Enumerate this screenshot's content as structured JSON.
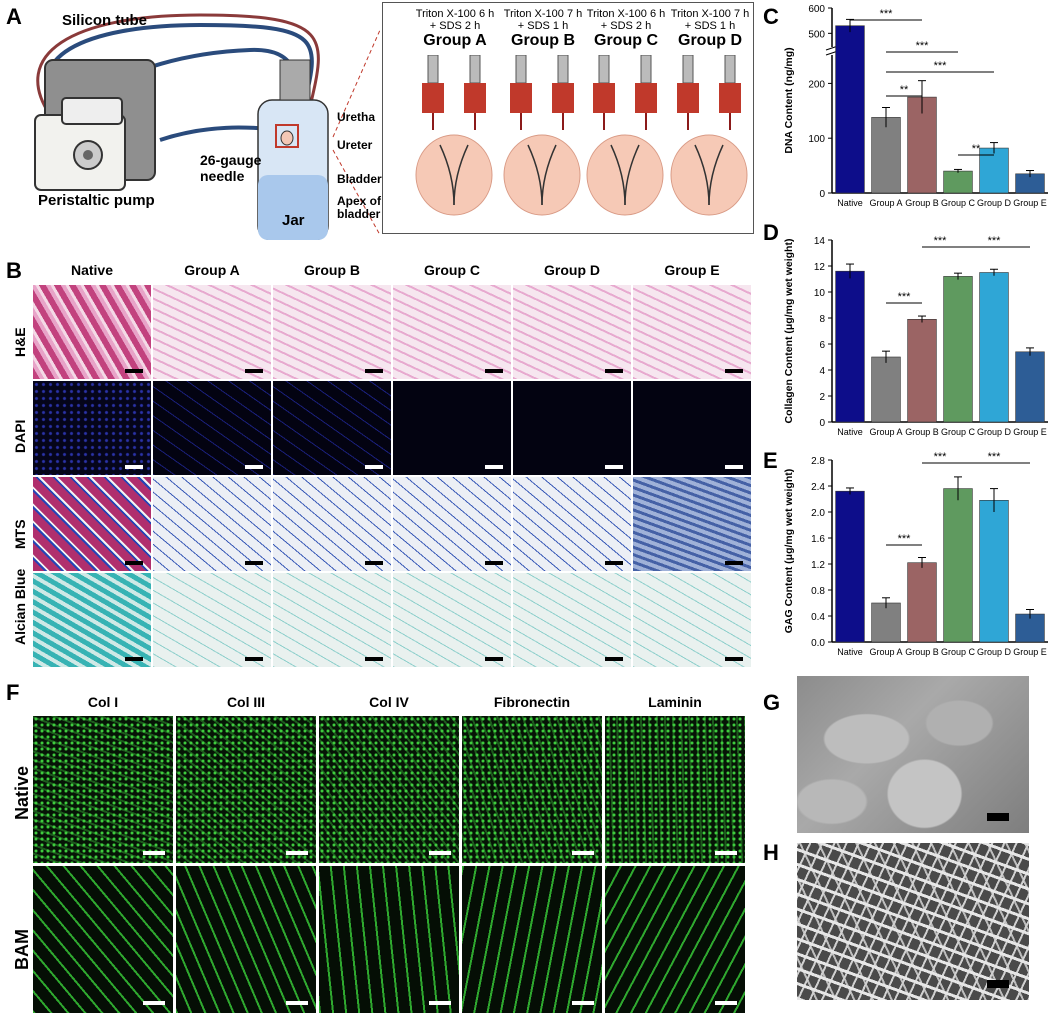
{
  "panels": {
    "A": {
      "letter": "A",
      "silicon_tube": "Silicon tube",
      "peristaltic_pump": "Peristaltic pump",
      "needle": "26-gauge\nneedle",
      "jar": "Jar",
      "urethra": "Uretha",
      "ureter": "Ureter",
      "bladder": "Bladder",
      "apex": "Apex of\nbladder",
      "groups": [
        {
          "t1": "Triton X-100 6 h",
          "t2": "+ SDS 2 h",
          "name": "Group A"
        },
        {
          "t1": "Triton X-100 7 h",
          "t2": "+ SDS 1 h",
          "name": "Group B"
        },
        {
          "t1": "Triton X-100 6 h",
          "t2": "+ SDS 2 h",
          "name": "Group C"
        },
        {
          "t1": "Triton X-100 7 h",
          "t2": "+ SDS 1 h",
          "name": "Group D"
        }
      ]
    },
    "B": {
      "letter": "B",
      "columns": [
        "Native",
        "Group A",
        "Group B",
        "Group C",
        "Group D",
        "Group E"
      ],
      "rows": [
        "H&E",
        "DAPI",
        "MTS",
        "Alcian Blue"
      ],
      "colors": {
        "H&E": "#e8a3c8",
        "DAPI": "#05051a",
        "MTS": "#c9d6ec",
        "Alcian Blue": "#cfe9e6"
      }
    },
    "F": {
      "letter": "F",
      "columns": [
        "Col I",
        "Col III",
        "Col IV",
        "Fibronectin",
        "Laminin"
      ],
      "rows": [
        "Native",
        "BAM"
      ]
    },
    "G": {
      "letter": "G"
    },
    "H": {
      "letter": "H"
    }
  },
  "chart_data": [
    {
      "panel": "C",
      "type": "bar",
      "ylabel": "DNA Content (ng/mg)",
      "categories": [
        "Native",
        "Group A",
        "Group B",
        "Group C",
        "Group D",
        "Group E"
      ],
      "values": [
        530,
        138,
        175,
        40,
        82,
        35
      ],
      "errors": [
        25,
        18,
        30,
        3,
        10,
        6
      ],
      "colors": [
        "#0d0d8a",
        "#808080",
        "#9b6464",
        "#5f9a5f",
        "#2fa6d6",
        "#2d5d96"
      ],
      "yticks_lower": [
        0,
        100,
        200
      ],
      "yticks_upper": [
        500,
        600
      ],
      "axis_break": true,
      "significance": [
        {
          "from": 0,
          "to": 2,
          "label": "***"
        },
        {
          "from": 1,
          "to": 3,
          "label": "***"
        },
        {
          "from": 1,
          "to": 4,
          "label": "***"
        },
        {
          "from": 1,
          "to": 2,
          "label": "**"
        },
        {
          "from": 3,
          "to": 4,
          "label": "**"
        }
      ]
    },
    {
      "panel": "D",
      "type": "bar",
      "ylabel": "Collagen Content (μg/mg wet weight)",
      "categories": [
        "Native",
        "Group A",
        "Group B",
        "Group C",
        "Group D",
        "Group E"
      ],
      "values": [
        11.6,
        5.0,
        7.9,
        11.2,
        11.5,
        5.4
      ],
      "errors": [
        0.55,
        0.45,
        0.25,
        0.25,
        0.25,
        0.3
      ],
      "colors": [
        "#0d0d8a",
        "#808080",
        "#9b6464",
        "#5f9a5f",
        "#2fa6d6",
        "#2d5d96"
      ],
      "ylim": [
        0,
        14
      ],
      "yticks": [
        0,
        2,
        4,
        6,
        8,
        10,
        12,
        14
      ],
      "significance": [
        {
          "from": 1,
          "to": 2,
          "label": "***"
        },
        {
          "from": 2,
          "to": 3,
          "label": "***"
        },
        {
          "from": 3,
          "to": 5,
          "label": "***"
        }
      ]
    },
    {
      "panel": "E",
      "type": "bar",
      "ylabel": "GAG Content (μg/mg wet weight)",
      "categories": [
        "Native",
        "Group A",
        "Group B",
        "Group C",
        "Group D",
        "Group E"
      ],
      "values": [
        2.32,
        0.6,
        1.22,
        2.36,
        2.18,
        0.43
      ],
      "errors": [
        0.05,
        0.08,
        0.08,
        0.18,
        0.18,
        0.07
      ],
      "colors": [
        "#0d0d8a",
        "#808080",
        "#9b6464",
        "#5f9a5f",
        "#2fa6d6",
        "#2d5d96"
      ],
      "ylim": [
        0,
        2.8
      ],
      "yticks": [
        0.0,
        0.4,
        0.8,
        1.2,
        1.6,
        2.0,
        2.4,
        2.8
      ],
      "significance": [
        {
          "from": 1,
          "to": 2,
          "label": "***"
        },
        {
          "from": 2,
          "to": 3,
          "label": "***"
        },
        {
          "from": 3,
          "to": 5,
          "label": "***"
        }
      ]
    }
  ]
}
